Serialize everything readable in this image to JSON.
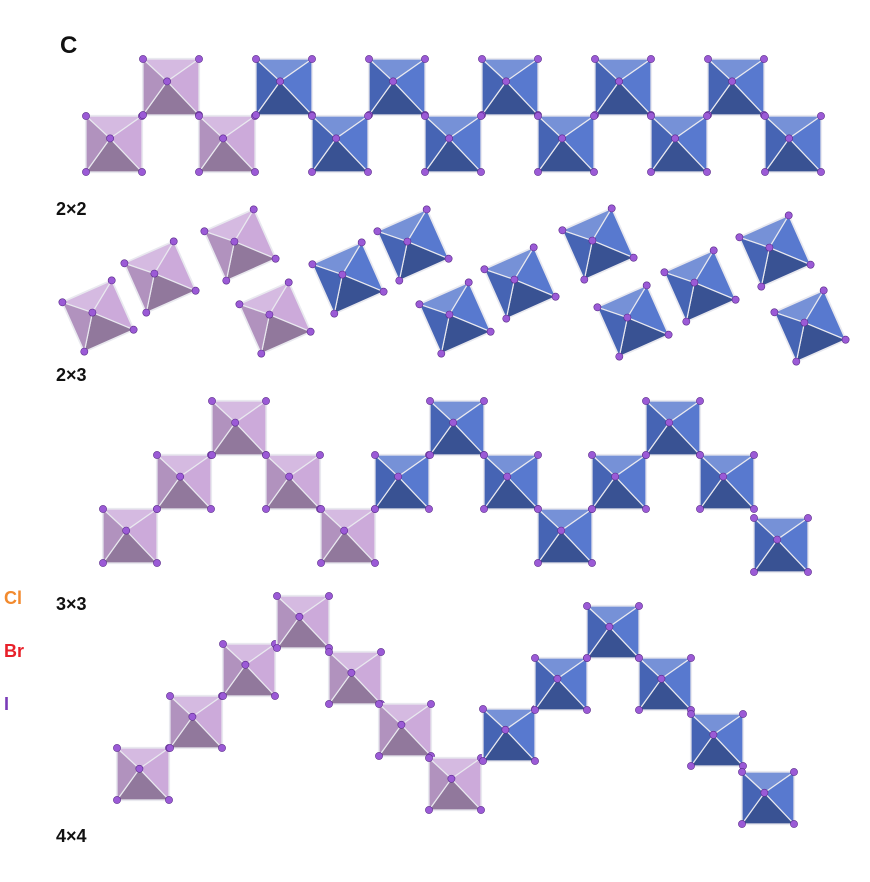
{
  "figure": {
    "panel_letter": "C",
    "rows": [
      {
        "label": "2×2"
      },
      {
        "label": "2×3"
      },
      {
        "label": "3×3"
      },
      {
        "label": "4×4"
      }
    ],
    "legend": [
      {
        "label": "Cl",
        "color": "#f28a2e"
      },
      {
        "label": "Br",
        "color": "#e8202a"
      },
      {
        "label": "I",
        "color": "#7a3bb8"
      }
    ],
    "colors": {
      "repeat_unit_octahedron": "#c9a6d8",
      "chain_octahedron": "#4f72cc",
      "halide_atom": "#9b5ad6",
      "edge": "#e9e9ef"
    }
  }
}
